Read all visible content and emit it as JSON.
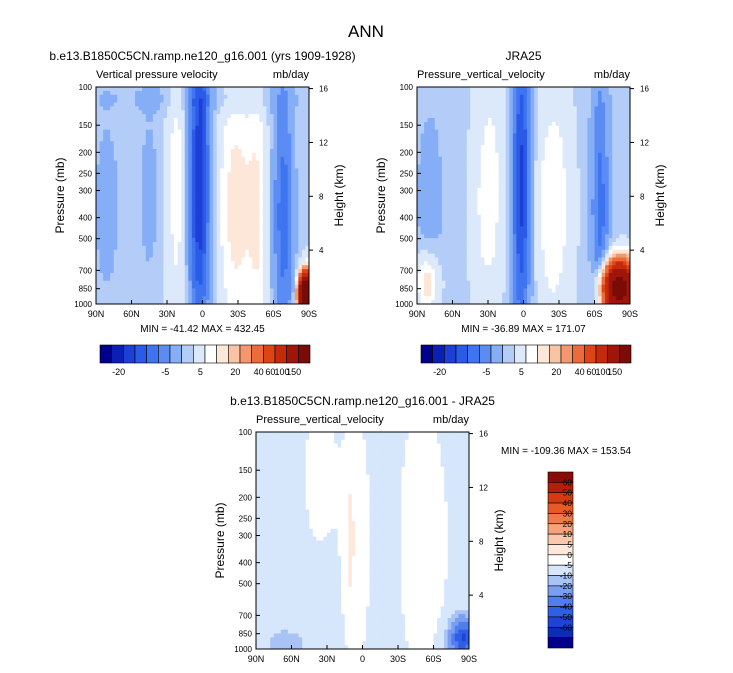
{
  "figure_title": "ANN",
  "colors": {
    "abs_levels": [
      "#00008b",
      "#0a1fb4",
      "#1e3fd6",
      "#2a5ae8",
      "#3f74f0",
      "#5a8cf4",
      "#86aef6",
      "#b3cdf8",
      "#dce9fb",
      "#ffffff",
      "#fde7d8",
      "#f9c4a4",
      "#f4976c",
      "#ed6a3a",
      "#dd4517",
      "#c42a0b",
      "#a0150a",
      "#7a0b07"
    ],
    "diff_levels": [
      "#00008b",
      "#0e2bb8",
      "#1e44d4",
      "#2e5fe6",
      "#4f7eee",
      "#7a9ff2",
      "#a9c3f6",
      "#d6e6fb",
      "#ffffff",
      "#fde9dc",
      "#fac9ad",
      "#f6a27c",
      "#f07a4c",
      "#e85a25",
      "#d43a12",
      "#b41f0c",
      "#8a0c08"
    ]
  },
  "chart_data": [
    {
      "id": "model",
      "type": "heatmap",
      "title": "b.e13.B1850C5CN.ramp.ne120_g16.001 (yrs 1909-1928)",
      "left_string": "Vertical pressure velocity",
      "right_string": "mb/day",
      "xlabel": "",
      "ylabel": "Pressure (mb)",
      "y2label": "Height (km)",
      "x_ticks": [
        "90N",
        "60N",
        "30N",
        "0",
        "30S",
        "60S",
        "90S"
      ],
      "y_ticks": [
        100,
        150,
        200,
        250,
        300,
        400,
        500,
        700,
        850,
        1000
      ],
      "y2_ticks": [
        4,
        8,
        12,
        16
      ],
      "ylim": [
        1000,
        100
      ],
      "y_scale": "log",
      "stats": "MIN = -41.42   MAX = 432.45",
      "colorbar_labels": [
        "-20",
        "-5",
        "5",
        "20",
        "40",
        "60",
        "100",
        "150"
      ]
    },
    {
      "id": "obs",
      "type": "heatmap",
      "title": "JRA25",
      "left_string": "Pressure_vertical_velocity",
      "right_string": "mb/day",
      "xlabel": "",
      "ylabel": "Pressure (mb)",
      "y2label": "Height (km)",
      "x_ticks": [
        "90N",
        "60N",
        "30N",
        "0",
        "30S",
        "60S",
        "90S"
      ],
      "y_ticks": [
        100,
        150,
        200,
        250,
        300,
        400,
        500,
        700,
        850,
        1000
      ],
      "y2_ticks": [
        4,
        8,
        12,
        16
      ],
      "ylim": [
        1000,
        100
      ],
      "y_scale": "log",
      "stats": "MIN = -36.89   MAX = 171.07",
      "colorbar_labels": [
        "-20",
        "-5",
        "5",
        "20",
        "40",
        "60",
        "100",
        "150"
      ]
    },
    {
      "id": "diff",
      "type": "heatmap",
      "title": "b.e13.B1850C5CN.ramp.ne120_g16.001 - JRA25",
      "left_string": "Pressure_vertical_velocity",
      "right_string": "mb/day",
      "xlabel": "",
      "ylabel": "Pressure (mb)",
      "y2label": "Height (km)",
      "x_ticks": [
        "90N",
        "60N",
        "30N",
        "0",
        "30S",
        "60S",
        "90S"
      ],
      "y_ticks": [
        100,
        150,
        200,
        250,
        300,
        400,
        500,
        700,
        850,
        1000
      ],
      "y2_ticks": [
        4,
        8,
        12,
        16
      ],
      "ylim": [
        1000,
        100
      ],
      "y_scale": "log",
      "stats": "MIN = -109.36   MAX = 153.54",
      "colorbar_labels": [
        "60",
        "50",
        "40",
        "30",
        "20",
        "10",
        "5",
        "0",
        "-5",
        "-10",
        "-20",
        "-30",
        "-40",
        "-50",
        "-60"
      ]
    }
  ]
}
